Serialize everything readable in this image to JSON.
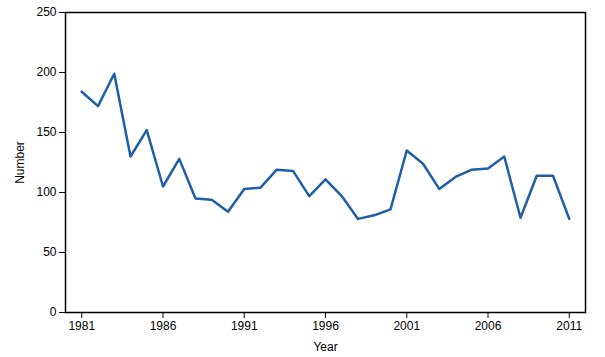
{
  "chart_data": {
    "type": "line",
    "x_label": "Year",
    "y_label": "Number",
    "x": [
      1981,
      1982,
      1983,
      1984,
      1985,
      1986,
      1987,
      1988,
      1989,
      1990,
      1991,
      1992,
      1993,
      1994,
      1995,
      1996,
      1997,
      1998,
      1999,
      2000,
      2001,
      2002,
      2003,
      2004,
      2005,
      2006,
      2007,
      2008,
      2009,
      2010,
      2011
    ],
    "values": [
      184,
      172,
      199,
      130,
      152,
      105,
      128,
      95,
      94,
      84,
      103,
      104,
      119,
      118,
      97,
      111,
      97,
      78,
      81,
      86,
      135,
      124,
      103,
      113,
      119,
      120,
      130,
      79,
      114,
      114,
      78
    ],
    "color": "#1f5fa6",
    "xlim": [
      1980,
      2012
    ],
    "xticks": [
      1981,
      1986,
      1991,
      1996,
      2001,
      2006,
      2011
    ],
    "ylim": [
      0,
      250
    ],
    "yticks": [
      0,
      50,
      100,
      150,
      200,
      250
    ],
    "grid": false
  }
}
